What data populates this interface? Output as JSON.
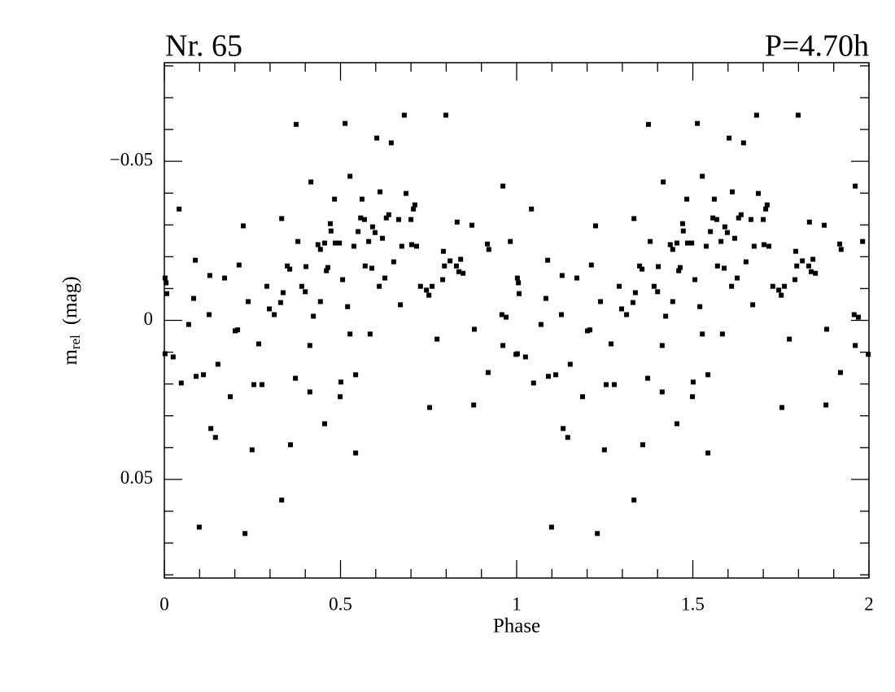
{
  "chart_data": {
    "type": "scatter",
    "title": "Nr. 65",
    "subtitle": "P=4.70h",
    "xlabel": "Phase",
    "ylabel": "m",
    "ylabel_sub": "rel",
    "ylabel_unit": "(mag)",
    "color": "#000000",
    "y_inverted": true,
    "xlim": [
      0,
      2
    ],
    "xticks": [
      0,
      0.5,
      1,
      1.5,
      2
    ],
    "xminorticks": [
      0.1,
      0.2,
      0.3,
      0.4,
      0.6,
      0.7,
      0.8,
      0.9,
      1.1,
      1.2,
      1.3,
      1.4,
      1.6,
      1.7,
      1.8,
      1.9
    ],
    "ylim": [
      -0.081,
      0.081
    ],
    "yticks": [
      {
        "value": -0.05,
        "label": "−0.05"
      },
      0,
      0.05
    ],
    "yminorticks": [
      -0.08,
      -0.07,
      -0.06,
      -0.04,
      -0.03,
      -0.02,
      -0.01,
      0.01,
      0.02,
      0.03,
      0.04,
      0.06,
      0.07,
      0.08
    ],
    "x": [
      0.002,
      0.005,
      0.007,
      0.002,
      0.025,
      0.042,
      0.048,
      0.069,
      0.083,
      0.088,
      0.09,
      0.099,
      0.111,
      0.127,
      0.129,
      0.132,
      0.145,
      0.152,
      0.171,
      0.187,
      0.201,
      0.208,
      0.212,
      0.224,
      0.229,
      0.238,
      0.249,
      0.254,
      0.268,
      0.277,
      0.291,
      0.298,
      0.312,
      0.33,
      0.333,
      0.333,
      0.337,
      0.349,
      0.356,
      0.358,
      0.372,
      0.374,
      0.379,
      0.39,
      0.4,
      0.402,
      0.413,
      0.416,
      0.413,
      0.423,
      0.436,
      0.443,
      0.443,
      0.455,
      0.455,
      0.46,
      0.464,
      0.471,
      0.473,
      0.483,
      0.485,
      0.497,
      0.499,
      0.501,
      0.506,
      0.513,
      0.52,
      0.527,
      0.527,
      0.538,
      0.543,
      0.543,
      0.55,
      0.557,
      0.561,
      0.568,
      0.57,
      0.58,
      0.584,
      0.589,
      0.591,
      0.598,
      0.603,
      0.61,
      0.612,
      0.619,
      0.626,
      0.63,
      0.637,
      0.644,
      0.651,
      0.665,
      0.67,
      0.674,
      0.681,
      0.686,
      0.7,
      0.702,
      0.707,
      0.711,
      0.716,
      0.727,
      0.744,
      0.751,
      0.753,
      0.76,
      0.774,
      0.79,
      0.792,
      0.795,
      0.799,
      0.811,
      0.829,
      0.831,
      0.836,
      0.841,
      0.848,
      0.873,
      0.878,
      0.88,
      0.917,
      0.919,
      0.921,
      0.961,
      0.958,
      0.961,
      0.97,
      0.982,
      0.998,
      1.002,
      1.005,
      1.007,
      1.002,
      1.025,
      1.042,
      1.048,
      1.069,
      1.083,
      1.088,
      1.09,
      1.099,
      1.111,
      1.127,
      1.129,
      1.132,
      1.145,
      1.152,
      1.171,
      1.187,
      1.201,
      1.208,
      1.212,
      1.224,
      1.229,
      1.238,
      1.249,
      1.254,
      1.268,
      1.277,
      1.291,
      1.298,
      1.312,
      1.33,
      1.333,
      1.333,
      1.337,
      1.349,
      1.356,
      1.358,
      1.372,
      1.374,
      1.379,
      1.39,
      1.4,
      1.402,
      1.413,
      1.416,
      1.413,
      1.423,
      1.436,
      1.443,
      1.443,
      1.455,
      1.455,
      1.46,
      1.464,
      1.471,
      1.473,
      1.483,
      1.485,
      1.497,
      1.499,
      1.501,
      1.506,
      1.513,
      1.52,
      1.527,
      1.527,
      1.538,
      1.543,
      1.543,
      1.55,
      1.557,
      1.561,
      1.568,
      1.57,
      1.58,
      1.584,
      1.589,
      1.591,
      1.598,
      1.603,
      1.61,
      1.612,
      1.619,
      1.626,
      1.63,
      1.637,
      1.644,
      1.651,
      1.665,
      1.67,
      1.674,
      1.681,
      1.686,
      1.7,
      1.702,
      1.707,
      1.711,
      1.716,
      1.727,
      1.744,
      1.751,
      1.753,
      1.76,
      1.774,
      1.79,
      1.792,
      1.795,
      1.799,
      1.811,
      1.829,
      1.831,
      1.836,
      1.841,
      1.848,
      1.873,
      1.878,
      1.88,
      1.917,
      1.919,
      1.921,
      1.961,
      1.958,
      1.961,
      1.97,
      1.982,
      1.998
    ],
    "values": [
      -0.0133,
      -0.0118,
      -0.0084,
      0.0105,
      0.0115,
      -0.035,
      0.0197,
      0.0013,
      -0.0069,
      -0.0189,
      0.0176,
      0.065,
      0.0171,
      -0.0018,
      -0.0141,
      0.034,
      0.0368,
      0.0138,
      -0.0133,
      0.024,
      0.0033,
      0.003,
      -0.0174,
      -0.0297,
      0.067,
      -0.0059,
      0.0407,
      0.0202,
      0.0074,
      0.0202,
      -0.0107,
      -0.0036,
      -0.0018,
      -0.0056,
      -0.032,
      0.0565,
      -0.0087,
      -0.0171,
      -0.0161,
      0.0391,
      0.0182,
      -0.0616,
      -0.0248,
      -0.0107,
      -0.009,
      -0.0169,
      0.0079,
      -0.0435,
      0.0225,
      -0.0013,
      -0.0238,
      -0.0059,
      -0.0223,
      -0.0243,
      0.0325,
      -0.0156,
      -0.0166,
      -0.0304,
      -0.0281,
      -0.0381,
      -0.0243,
      -0.0243,
      0.024,
      0.0194,
      -0.0128,
      -0.0619,
      -0.0043,
      -0.0453,
      0.0043,
      -0.0233,
      0.0417,
      0.0171,
      -0.0279,
      -0.0322,
      -0.0381,
      -0.0317,
      -0.0171,
      -0.0248,
      0.0043,
      -0.0164,
      -0.0294,
      -0.0276,
      -0.0573,
      -0.0107,
      -0.0404,
      -0.0258,
      -0.0133,
      -0.0322,
      -0.0332,
      -0.0558,
      -0.0184,
      -0.0317,
      -0.0049,
      -0.0233,
      -0.0645,
      -0.0399,
      -0.0317,
      -0.0238,
      -0.035,
      -0.0363,
      -0.0233,
      -0.0107,
      -0.0095,
      -0.0079,
      0.0274,
      -0.0107,
      0.0059,
      -0.0128,
      -0.0217,
      -0.0171,
      -0.0645,
      -0.0187,
      -0.0171,
      -0.0309,
      -0.0153,
      -0.0192,
      -0.0148,
      -0.0299,
      0.0266,
      0.0028,
      -0.024,
      0.0164,
      -0.0223,
      -0.0422,
      -0.0018,
      0.0079,
      -0.001,
      -0.0248,
      0.0107,
      -0.0133,
      -0.0118,
      -0.0084,
      0.0105,
      0.0115,
      -0.035,
      0.0197,
      0.0013,
      -0.0069,
      -0.0189,
      0.0176,
      0.065,
      0.0171,
      -0.0018,
      -0.0141,
      0.034,
      0.0368,
      0.0138,
      -0.0133,
      0.024,
      0.0033,
      0.003,
      -0.0174,
      -0.0297,
      0.067,
      -0.0059,
      0.0407,
      0.0202,
      0.0074,
      0.0202,
      -0.0107,
      -0.0036,
      -0.0018,
      -0.0056,
      -0.032,
      0.0565,
      -0.0087,
      -0.0171,
      -0.0161,
      0.0391,
      0.0182,
      -0.0616,
      -0.0248,
      -0.0107,
      -0.009,
      -0.0169,
      0.0079,
      -0.0435,
      0.0225,
      -0.0013,
      -0.0238,
      -0.0059,
      -0.0223,
      -0.0243,
      0.0325,
      -0.0156,
      -0.0166,
      -0.0304,
      -0.0281,
      -0.0381,
      -0.0243,
      -0.0243,
      0.024,
      0.0194,
      -0.0128,
      -0.0619,
      -0.0043,
      -0.0453,
      0.0043,
      -0.0233,
      0.0417,
      0.0171,
      -0.0279,
      -0.0322,
      -0.0381,
      -0.0317,
      -0.0171,
      -0.0248,
      0.0043,
      -0.0164,
      -0.0294,
      -0.0276,
      -0.0573,
      -0.0107,
      -0.0404,
      -0.0258,
      -0.0133,
      -0.0322,
      -0.0332,
      -0.0558,
      -0.0184,
      -0.0317,
      -0.0049,
      -0.0233,
      -0.0645,
      -0.0399,
      -0.0317,
      -0.0238,
      -0.035,
      -0.0363,
      -0.0233,
      -0.0107,
      -0.0095,
      -0.0079,
      0.0274,
      -0.0107,
      0.0059,
      -0.0128,
      -0.0217,
      -0.0171,
      -0.0645,
      -0.0187,
      -0.0171,
      -0.0309,
      -0.0153,
      -0.0192,
      -0.0148,
      -0.0299,
      0.0266,
      0.0028,
      -0.024,
      0.0164,
      -0.0223,
      -0.0422,
      -0.0018,
      0.0079,
      -0.001,
      -0.0248,
      0.0107
    ]
  }
}
